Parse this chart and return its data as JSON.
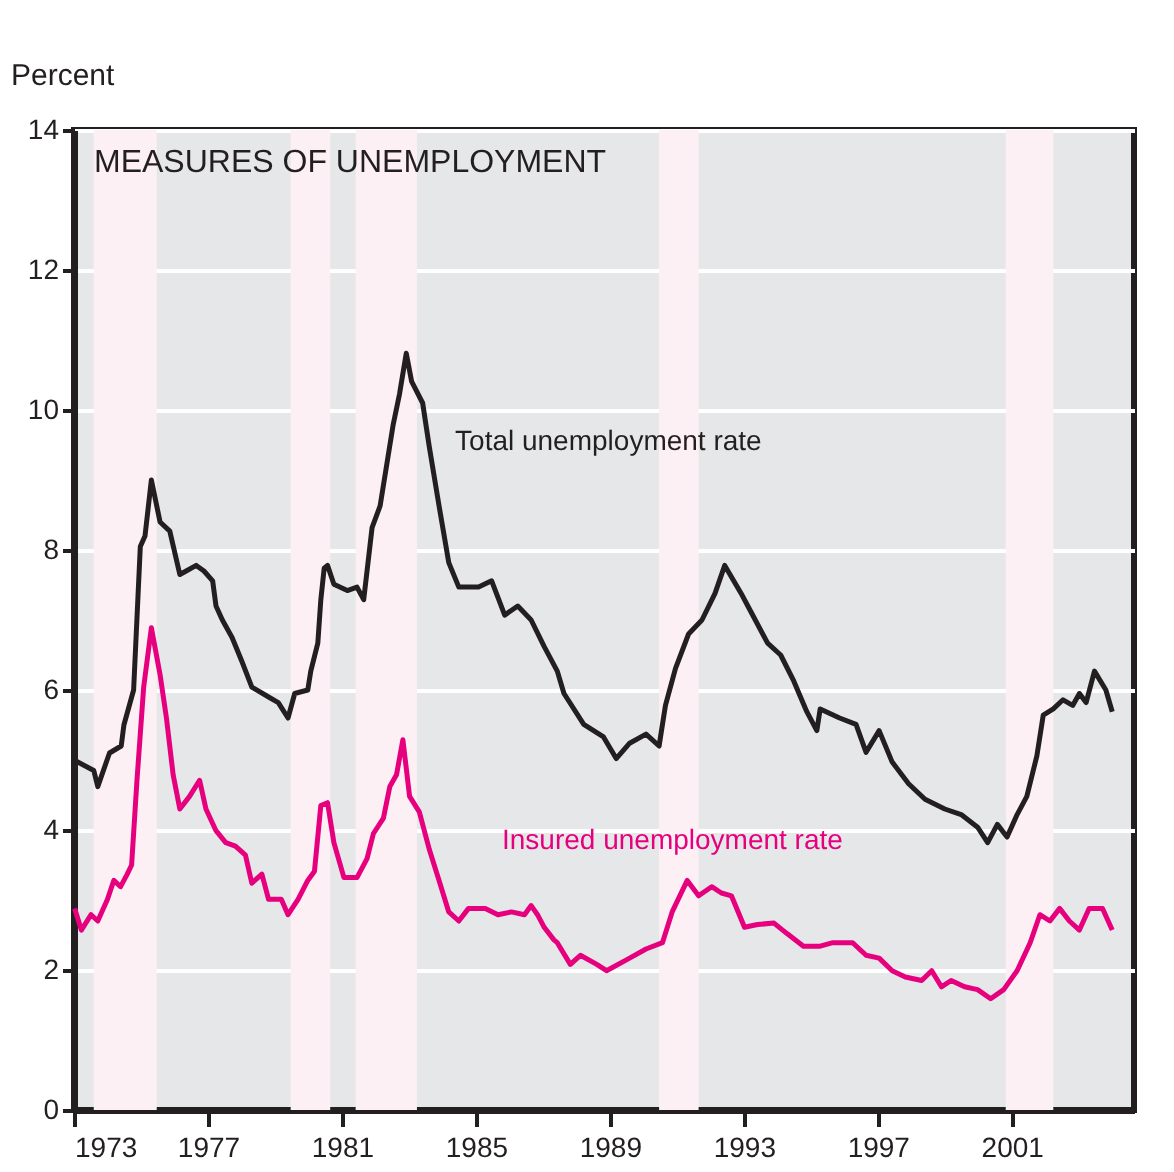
{
  "chart_data": {
    "type": "line",
    "title": "MEASURES OF UNEMPLOYMENT",
    "ylabel": "Percent",
    "xlim": [
      1973,
      2004.65
    ],
    "xticks": [
      1973,
      1977,
      1981,
      1985,
      1989,
      1993,
      1997,
      2001
    ],
    "ylim": [
      0,
      14
    ],
    "yticks": [
      0,
      2,
      4,
      6,
      8,
      10,
      12,
      14
    ],
    "grid": "y",
    "legend": false,
    "line_style": "solid",
    "marker": "none",
    "series": [
      {
        "name": "Total unemployment rate",
        "color": "#231f20",
        "x": [
          1973.0,
          1973.59,
          1973.71,
          1974.06,
          1974.41,
          1974.49,
          1974.78,
          1974.98,
          1975.12,
          1975.31,
          1975.57,
          1975.86,
          1976.16,
          1976.35,
          1976.65,
          1976.88,
          1977.14,
          1977.24,
          1977.43,
          1977.72,
          1978.02,
          1978.31,
          1978.81,
          1979.1,
          1979.39,
          1979.59,
          1979.98,
          1980.07,
          1980.28,
          1980.37,
          1980.47,
          1980.57,
          1980.76,
          1981.16,
          1981.45,
          1981.65,
          1981.9,
          1982.14,
          1982.53,
          1982.72,
          1982.92,
          1983.08,
          1983.41,
          1983.61,
          1983.9,
          1984.19,
          1984.49,
          1985.08,
          1985.47,
          1985.86,
          1986.25,
          1986.65,
          1987.04,
          1987.43,
          1987.63,
          1988.22,
          1988.81,
          1989.19,
          1989.59,
          1990.08,
          1990.47,
          1990.66,
          1990.96,
          1991.35,
          1991.75,
          1992.14,
          1992.43,
          1992.92,
          1993.12,
          1993.71,
          1994.1,
          1994.49,
          1994.88,
          1995.18,
          1995.28,
          1995.86,
          1996.35,
          1996.65,
          1997.04,
          1997.43,
          1997.92,
          1998.41,
          1999.0,
          1999.49,
          1999.98,
          2000.28,
          2000.57,
          2000.86,
          2001.16,
          2001.45,
          2001.75,
          2001.94,
          2002.24,
          2002.53,
          2002.82,
          2003.02,
          2003.22,
          2003.47,
          2003.81,
          2004.0
        ],
        "values": [
          5.0,
          4.85,
          4.62,
          5.1,
          5.2,
          5.5,
          6.0,
          8.05,
          8.2,
          9.0,
          8.4,
          8.27,
          7.65,
          7.7,
          7.78,
          7.7,
          7.56,
          7.2,
          7.0,
          6.75,
          6.4,
          6.04,
          5.9,
          5.82,
          5.6,
          5.95,
          6.0,
          6.27,
          6.67,
          7.29,
          7.74,
          7.78,
          7.51,
          7.42,
          7.47,
          7.29,
          8.32,
          8.63,
          9.79,
          10.23,
          10.81,
          10.41,
          10.1,
          9.47,
          8.63,
          7.82,
          7.47,
          7.47,
          7.56,
          7.07,
          7.2,
          7.0,
          6.62,
          6.27,
          5.95,
          5.51,
          5.33,
          5.02,
          5.24,
          5.37,
          5.2,
          5.78,
          6.31,
          6.8,
          7.0,
          7.38,
          7.78,
          7.38,
          7.2,
          6.67,
          6.5,
          6.13,
          5.69,
          5.42,
          5.73,
          5.6,
          5.51,
          5.11,
          5.42,
          4.97,
          4.66,
          4.44,
          4.3,
          4.22,
          4.04,
          3.82,
          4.08,
          3.9,
          4.22,
          4.48,
          5.06,
          5.64,
          5.73,
          5.86,
          5.78,
          5.95,
          5.82,
          6.27,
          6.0,
          5.69
        ]
      },
      {
        "name": "Insured unemployment rate",
        "color": "#e6007e",
        "x": [
          1973.02,
          1973.22,
          1973.51,
          1973.71,
          1974.0,
          1974.19,
          1974.39,
          1974.59,
          1974.72,
          1974.88,
          1975.08,
          1975.31,
          1975.57,
          1975.76,
          1975.96,
          1976.16,
          1976.45,
          1976.75,
          1976.94,
          1977.24,
          1977.53,
          1977.82,
          1978.12,
          1978.31,
          1978.61,
          1978.81,
          1979.19,
          1979.39,
          1979.69,
          1979.98,
          1980.18,
          1980.37,
          1980.57,
          1980.76,
          1981.06,
          1981.45,
          1981.75,
          1981.94,
          1982.24,
          1982.43,
          1982.63,
          1982.82,
          1983.02,
          1983.31,
          1983.61,
          1983.9,
          1984.19,
          1984.49,
          1984.78,
          1985.28,
          1985.66,
          1986.06,
          1986.45,
          1986.65,
          1986.84,
          1987.04,
          1987.33,
          1987.43,
          1987.82,
          1988.12,
          1988.61,
          1988.9,
          1989.59,
          1990.08,
          1990.57,
          1990.86,
          1991.31,
          1991.65,
          1992.04,
          1992.33,
          1992.63,
          1993.02,
          1993.41,
          1993.9,
          1994.29,
          1994.78,
          1995.28,
          1995.66,
          1996.25,
          1996.65,
          1997.04,
          1997.43,
          1997.82,
          1998.31,
          1998.61,
          1998.9,
          1999.19,
          1999.59,
          1999.98,
          2000.37,
          2000.76,
          2001.16,
          2001.55,
          2001.84,
          2002.14,
          2002.43,
          2002.72,
          2003.02,
          2003.31,
          2003.71,
          2004.0
        ],
        "values": [
          2.88,
          2.57,
          2.79,
          2.7,
          3.01,
          3.28,
          3.19,
          3.37,
          3.5,
          4.71,
          6.04,
          6.89,
          6.22,
          5.6,
          4.79,
          4.3,
          4.48,
          4.71,
          4.3,
          3.99,
          3.82,
          3.77,
          3.64,
          3.24,
          3.37,
          3.01,
          3.01,
          2.79,
          3.01,
          3.28,
          3.41,
          4.35,
          4.39,
          3.82,
          3.32,
          3.32,
          3.59,
          3.95,
          4.17,
          4.62,
          4.79,
          5.29,
          4.48,
          4.26,
          3.72,
          3.28,
          2.83,
          2.7,
          2.88,
          2.88,
          2.79,
          2.83,
          2.79,
          2.92,
          2.79,
          2.61,
          2.43,
          2.39,
          2.08,
          2.21,
          2.08,
          1.99,
          2.17,
          2.3,
          2.39,
          2.83,
          3.28,
          3.06,
          3.19,
          3.1,
          3.06,
          2.61,
          2.65,
          2.67,
          2.52,
          2.34,
          2.34,
          2.39,
          2.39,
          2.21,
          2.17,
          1.99,
          1.9,
          1.85,
          1.99,
          1.76,
          1.85,
          1.76,
          1.72,
          1.59,
          1.72,
          1.99,
          2.39,
          2.79,
          2.7,
          2.88,
          2.7,
          2.57,
          2.88,
          2.88,
          2.57
        ]
      }
    ],
    "bands": [
      {
        "axis": "x",
        "from": 1973.59,
        "to": 1975.47,
        "color": "#fdf0f4"
      },
      {
        "axis": "x",
        "from": 1979.47,
        "to": 1980.65,
        "color": "#fdf0f4"
      },
      {
        "axis": "x",
        "from": 1981.41,
        "to": 1983.24,
        "color": "#fdf0f4"
      },
      {
        "axis": "x",
        "from": 1990.47,
        "to": 1991.65,
        "color": "#fdf0f4"
      },
      {
        "axis": "x",
        "from": 2000.82,
        "to": 2002.24,
        "color": "#fdf0f4"
      }
    ]
  }
}
